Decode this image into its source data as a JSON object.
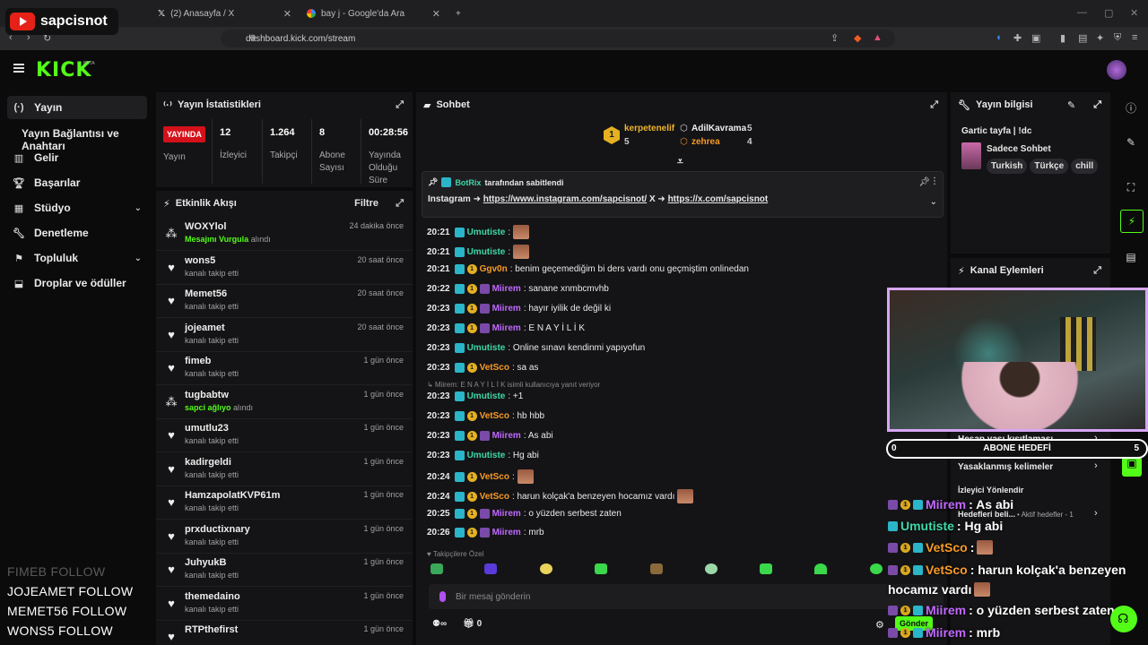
{
  "browser": {
    "overlay_channel": "sapcisnot",
    "tabs": [
      {
        "label": "(2) Anasayfa / X"
      },
      {
        "label": "bay j - Google'da Ara"
      }
    ],
    "url": "dashboard.kick.com/stream"
  },
  "sidebar": {
    "items": [
      {
        "label": "Yayın",
        "icon": "broadcast-icon"
      },
      {
        "label": "Yayın Bağlantısı ve Anahtarı"
      },
      {
        "label": "Gelir",
        "icon": "chart-icon"
      },
      {
        "label": "Başarılar",
        "icon": "trophy-icon"
      },
      {
        "label": "Stüdyo",
        "icon": "studio-icon"
      },
      {
        "label": "Denetleme",
        "icon": "wrench-icon"
      },
      {
        "label": "Topluluk",
        "icon": "community-icon"
      },
      {
        "label": "Droplar ve ödüller",
        "icon": "drops-icon"
      }
    ]
  },
  "stats": {
    "title": "Yayın İstatistikleri",
    "live_label": "YAYINDA",
    "status_label": "Yayın",
    "items": [
      {
        "value": "12",
        "label": "İzleyici"
      },
      {
        "value": "1.264",
        "label": "Takipçi"
      },
      {
        "value": "8",
        "label": "Abone Sayısı"
      },
      {
        "value": "00:28:56",
        "label": "Yayında Olduğu Süre"
      }
    ]
  },
  "activity": {
    "title": "Etkinlik Akışı",
    "filter_label": "Filtre",
    "rows": [
      {
        "name": "WOXYlol",
        "highlight": "Mesajını Vurgula",
        "action": " alındı",
        "time": "24 dakika önce",
        "icon": "reward-icon"
      },
      {
        "name": "wons5",
        "action": "kanalı takip etti",
        "time": "20 saat önce",
        "icon": "heart-icon"
      },
      {
        "name": "Memet56",
        "action": "kanalı takip etti",
        "time": "20 saat önce",
        "icon": "heart-icon"
      },
      {
        "name": "jojeamet",
        "action": "kanalı takip etti",
        "time": "20 saat önce",
        "icon": "heart-icon"
      },
      {
        "name": "fimeb",
        "action": "kanalı takip etti",
        "time": "1 gün önce",
        "icon": "heart-icon"
      },
      {
        "name": "tugbabtw",
        "highlight": "sapci ağlıyo",
        "action": " alındı",
        "time": "1 gün önce",
        "icon": "reward-icon"
      },
      {
        "name": "umutlu23",
        "action": "kanalı takip etti",
        "time": "1 gün önce",
        "icon": "heart-icon"
      },
      {
        "name": "kadirgeldi",
        "action": "kanalı takip etti",
        "time": "1 gün önce",
        "icon": "heart-icon"
      },
      {
        "name": "HamzapolatKVP61m",
        "action": "kanalı takip etti",
        "time": "1 gün önce",
        "icon": "heart-icon"
      },
      {
        "name": "prxductixnary",
        "action": "kanalı takip etti",
        "time": "1 gün önce",
        "icon": "heart-icon"
      },
      {
        "name": "JuhyukB",
        "action": "kanalı takip etti",
        "time": "1 gün önce",
        "icon": "heart-icon"
      },
      {
        "name": "themedaino",
        "action": "kanalı takip etti",
        "time": "1 gün önce",
        "icon": "heart-icon"
      },
      {
        "name": "RTPthefirst",
        "action": "",
        "time": "1 gün önce",
        "icon": "heart-icon"
      }
    ]
  },
  "chat": {
    "title": "Sohbet",
    "leaders": [
      {
        "rank": "1",
        "name": "kerpetenelif",
        "count": "5"
      },
      {
        "name": "AdilKavrama",
        "count": "5"
      },
      {
        "name": "zehrea",
        "count": "4"
      }
    ],
    "pinned": {
      "by": "BotRix",
      "suffix": "tarafından sabitlendi",
      "prefix": "Instagram ➜ ",
      "link1": "https://www.instagram.com/sapcisnot/",
      "mid": " X ➜ ",
      "link2": "https://x.com/sapcisnot"
    },
    "messages": [
      {
        "time": "20:21",
        "user": "Umutiste",
        "color": "green",
        "badges": [
          "b1"
        ],
        "text": ":",
        "emote": true
      },
      {
        "time": "20:21",
        "user": "Umutiste",
        "color": "green",
        "badges": [
          "b1"
        ],
        "text": ":",
        "emote": true
      },
      {
        "time": "20:21",
        "user": "Ggv0n",
        "color": "orange",
        "badges": [
          "b1",
          "b2"
        ],
        "text": ": benim geçemediğim bi ders vardı onu geçmiştim onlinedan"
      },
      {
        "time": "20:22",
        "user": "Miirem",
        "color": "purple",
        "badges": [
          "b1",
          "b2",
          "b3"
        ],
        "text": ": sanane xnmbcmvhb"
      },
      {
        "time": "20:23",
        "user": "Miirem",
        "color": "purple",
        "badges": [
          "b1",
          "b2",
          "b3"
        ],
        "text": ": hayır iyilik de değil ki"
      },
      {
        "time": "20:23",
        "user": "Miirem",
        "color": "purple",
        "badges": [
          "b1",
          "b2",
          "b3"
        ],
        "text": ": E N A Y İ L İ K"
      },
      {
        "time": "20:23",
        "user": "Umutiste",
        "color": "green",
        "badges": [
          "b1"
        ],
        "text": ": Online sınavı kendinmi yapıyofun"
      },
      {
        "time": "20:23",
        "user": "VetSco",
        "color": "orange",
        "badges": [
          "b1",
          "b2"
        ],
        "text": ": sa as"
      },
      {
        "time": "20:23",
        "user": "Umutiste",
        "color": "green",
        "badges": [
          "b1"
        ],
        "text": ": +1"
      },
      {
        "time": "20:23",
        "user": "VetSco",
        "color": "orange",
        "badges": [
          "b1",
          "b2"
        ],
        "text": ": hb hbb"
      },
      {
        "time": "20:23",
        "user": "Miirem",
        "color": "purple",
        "badges": [
          "b1",
          "b2",
          "b3"
        ],
        "text": ": As abi"
      },
      {
        "time": "20:23",
        "user": "Umutiste",
        "color": "green",
        "badges": [
          "b1"
        ],
        "text": ": Hg abi"
      },
      {
        "time": "20:24",
        "user": "VetSco",
        "color": "orange",
        "badges": [
          "b1",
          "b2"
        ],
        "text": ":",
        "emote": true
      },
      {
        "time": "20:24",
        "user": "VetSco",
        "color": "orange",
        "badges": [
          "b1",
          "b2"
        ],
        "text": ": harun kolçak'a benzeyen hocamız vardı",
        "emote": true
      },
      {
        "time": "20:25",
        "user": "Miirem",
        "color": "purple",
        "badges": [
          "b1",
          "b2",
          "b3"
        ],
        "text": ": o yüzden serbest zaten"
      },
      {
        "time": "20:26",
        "user": "Miirem",
        "color": "purple",
        "badges": [
          "b1",
          "b2",
          "b3"
        ],
        "text": ": mrb"
      }
    ],
    "reply_hint": "Miirem: E N A Y İ L İ K isimli kullanıcıya yanıt veriyor",
    "followers_only": "Takipçilere Özel",
    "input_placeholder": "Bir mesaj gönderin",
    "counter": "0",
    "send_label": "Gönder"
  },
  "info": {
    "title": "Yayın bilgisi",
    "stream_title": "Gartic tayfa | !dc",
    "category": "Sadece Sohbet",
    "tags": [
      "Turkish",
      "Türkçe",
      "chill"
    ]
  },
  "actions": {
    "title": "Kanal Eylemleri",
    "items": [
      {
        "label": "Hesap yaşı kısıtlaması"
      },
      {
        "label": "Yasaklanmış kelimeler"
      },
      {
        "label": "İzleyici Yönlendir"
      },
      {
        "label": "Hedefleri beli...",
        "badge": "Aktif hedefler - 1"
      }
    ]
  },
  "overlay": {
    "goal": {
      "left": "0",
      "label": "ABONE HEDEFİ",
      "right": "5"
    },
    "chat": [
      {
        "user": "Miirem",
        "color": "purple",
        "text": " : As abi"
      },
      {
        "user": "Umutiste",
        "color": "green",
        "text": " : Hg abi"
      },
      {
        "user": "VetSco",
        "color": "orange",
        "text": " :"
      },
      {
        "user": "VetSco",
        "color": "orange",
        "text": " : harun kolçak'a benzeyen"
      },
      {
        "user": "",
        "color": "",
        "text": "hocamız vardı"
      },
      {
        "user": "Miirem",
        "color": "purple",
        "text": " : o yüzden serbest zaten"
      },
      {
        "user": "Miirem",
        "color": "purple",
        "text": " : mrb"
      }
    ],
    "follows": [
      "FIMEB  FOLLOW",
      "JOJEAMET  FOLLOW",
      "MEMET56  FOLLOW",
      "WONS5  FOLLOW"
    ]
  },
  "colors": {
    "accent": "#53fc18",
    "live": "#d4111a",
    "green_user": "#3ed8a8",
    "orange_user": "#f79a28",
    "purple_user": "#c169ff"
  }
}
